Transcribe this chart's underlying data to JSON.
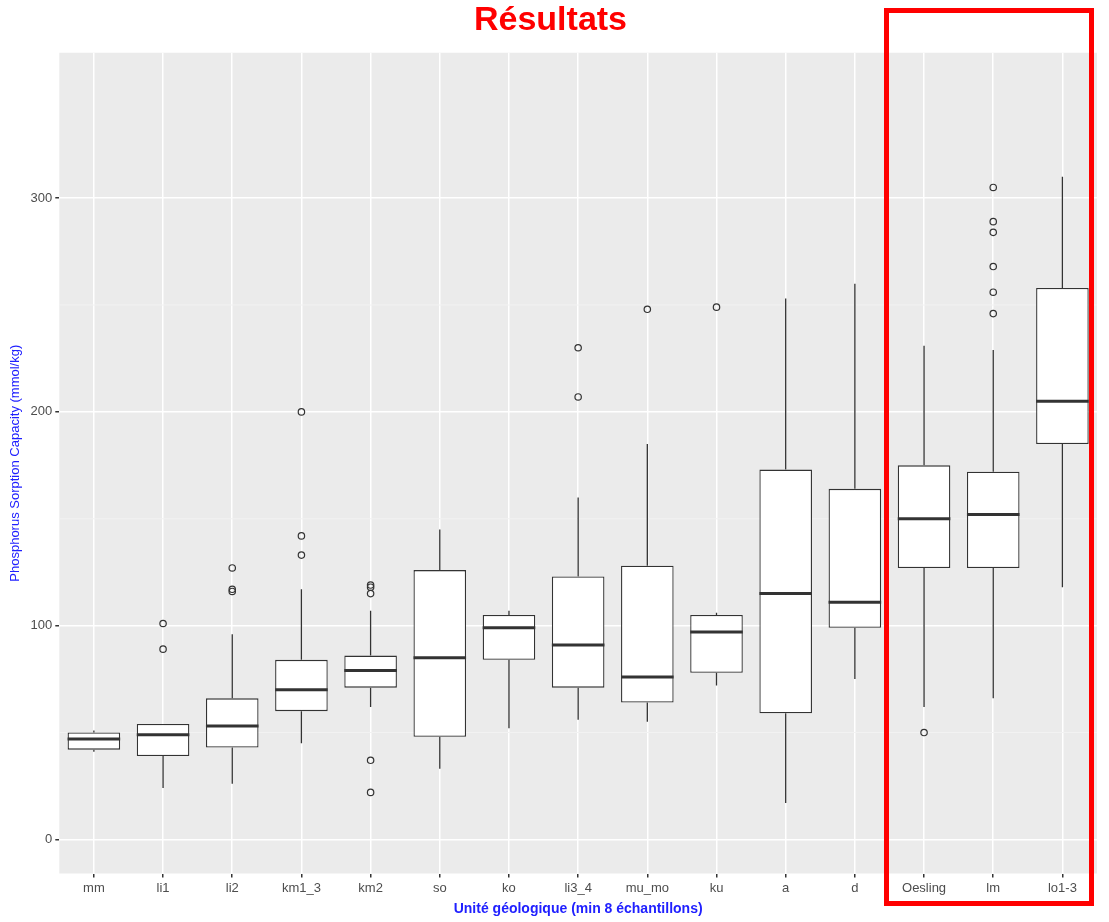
{
  "chart_data": {
    "type": "box",
    "title": "Résultats",
    "xlabel": "Unité géologique (min 8 échantillons)",
    "ylabel": "Phosphorus Sorption Capacity (mmol/kg)",
    "categories": [
      "mm",
      "li1",
      "li2",
      "km1_3",
      "km2",
      "so",
      "ko",
      "li3_4",
      "mu_mo",
      "ku",
      "a",
      "d",
      "Oesling",
      "lm",
      "lo1-3"
    ],
    "boxes": [
      {
        "low": 41,
        "q1": 42,
        "median": 47,
        "q3": 50,
        "high": 51
      },
      {
        "low": 24,
        "q1": 39,
        "median": 49,
        "q3": 54,
        "high": 54,
        "outliers": [
          101,
          89
        ]
      },
      {
        "low": 26,
        "q1": 43,
        "median": 53,
        "q3": 66,
        "high": 96,
        "outliers": [
          127,
          117,
          116
        ]
      },
      {
        "low": 45,
        "q1": 60,
        "median": 70,
        "q3": 84,
        "high": 117,
        "outliers": [
          200,
          142,
          133
        ]
      },
      {
        "low": 62,
        "q1": 71,
        "median": 79,
        "q3": 86,
        "high": 107,
        "outliers": [
          119,
          118,
          115,
          37,
          22
        ]
      },
      {
        "low": 33,
        "q1": 48,
        "median": 85,
        "q3": 126,
        "high": 145
      },
      {
        "low": 52,
        "q1": 84,
        "median": 99,
        "q3": 105,
        "high": 107
      },
      {
        "low": 56,
        "q1": 71,
        "median": 91,
        "q3": 123,
        "high": 160,
        "outliers": [
          230,
          207
        ]
      },
      {
        "low": 55,
        "q1": 64,
        "median": 76,
        "q3": 128,
        "high": 185,
        "outliers": [
          248
        ]
      },
      {
        "low": 72,
        "q1": 78,
        "median": 97,
        "q3": 105,
        "high": 106,
        "outliers": [
          249
        ]
      },
      {
        "low": 17,
        "q1": 59,
        "median": 115,
        "q3": 173,
        "high": 253
      },
      {
        "low": 75,
        "q1": 99,
        "median": 111,
        "q3": 164,
        "high": 260
      },
      {
        "low": 62,
        "q1": 127,
        "median": 150,
        "q3": 175,
        "high": 231,
        "outliers": [
          50
        ]
      },
      {
        "low": 66,
        "q1": 127,
        "median": 152,
        "q3": 172,
        "high": 229,
        "outliers": [
          305,
          289,
          284,
          268,
          256,
          246
        ]
      },
      {
        "low": 118,
        "q1": 185,
        "median": 205,
        "q3": 258,
        "high": 310
      }
    ],
    "ylim": [
      -16,
      368
    ],
    "yticks": [
      0,
      100,
      200,
      300
    ],
    "grid": true,
    "legend": false
  }
}
